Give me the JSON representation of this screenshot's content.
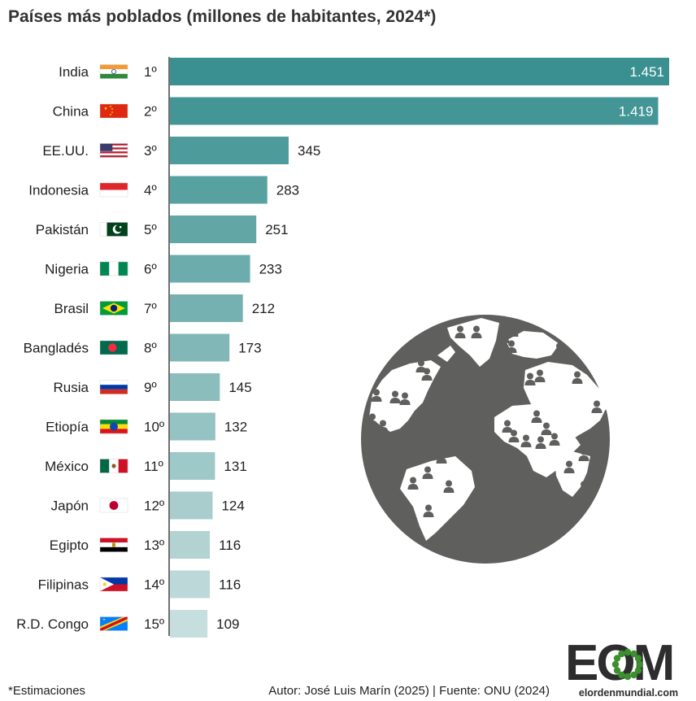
{
  "chart_data": {
    "type": "bar",
    "orientation": "horizontal",
    "title": "Países más poblados (millones de habitantes, 2024*)",
    "categories": [
      "India",
      "China",
      "EE.UU.",
      "Indonesia",
      "Pakistán",
      "Nigeria",
      "Brasil",
      "Bangladés",
      "Rusia",
      "Etiopía",
      "México",
      "Japón",
      "Egipto",
      "Filipinas",
      "R.D. Congo"
    ],
    "ranks": [
      "1º",
      "2º",
      "3º",
      "4º",
      "5º",
      "6º",
      "7º",
      "8º",
      "9º",
      "10º",
      "11º",
      "12º",
      "13º",
      "14º",
      "15º"
    ],
    "values": [
      1451,
      1419,
      345,
      283,
      251,
      233,
      212,
      173,
      145,
      132,
      131,
      124,
      116,
      116,
      109
    ],
    "value_labels": [
      "1.451",
      "1.419",
      "345",
      "283",
      "251",
      "233",
      "212",
      "173",
      "145",
      "132",
      "131",
      "124",
      "116",
      "116",
      "109"
    ],
    "flags": [
      "india-flag",
      "china-flag",
      "usa-flag",
      "indonesia-flag",
      "pakistan-flag",
      "nigeria-flag",
      "brazil-flag",
      "bangladesh-flag",
      "russia-flag",
      "ethiopia-flag",
      "mexico-flag",
      "japan-flag",
      "egypt-flag",
      "philippines-flag",
      "drcongo-flag"
    ],
    "xlim": [
      0,
      1451
    ],
    "grid": false,
    "legend": "none",
    "bar_color_start": "#3a9090",
    "bar_color_end": "#c7dede"
  },
  "footnote": "*Estimaciones",
  "credit": "Autor: José Luis Marín (2025) | Fuente: ONU (2024)",
  "logo": {
    "letters": "EOM",
    "site": "elordenmundial.com",
    "color": "#2d2d2d",
    "accent": "#3d8f2e"
  },
  "illustration": {
    "name": "globe-with-people",
    "color": "#5f605e"
  }
}
